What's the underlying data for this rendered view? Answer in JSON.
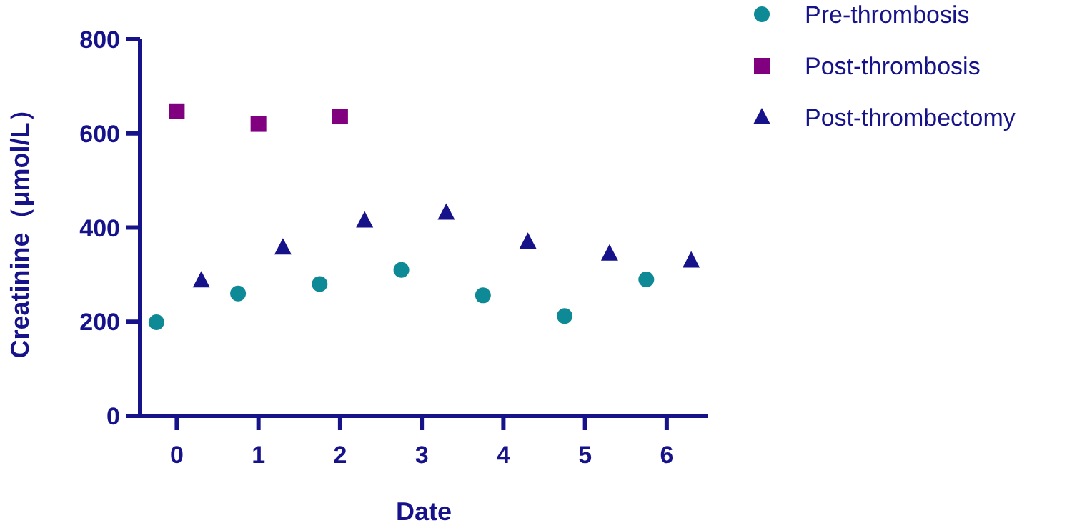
{
  "chart_data": {
    "type": "scatter",
    "xlabel": "Date",
    "ylabel": "Creatinine（μmol/L）",
    "xlim": [
      -0.45,
      6.5
    ],
    "ylim": [
      0,
      800
    ],
    "xticks": [
      0,
      1,
      2,
      3,
      4,
      5,
      6
    ],
    "yticks": [
      0,
      200,
      400,
      600,
      800
    ],
    "grid": false,
    "legend": "top right",
    "series": [
      {
        "name": "Pre-thrombosis",
        "color": "#0e8a96",
        "marker": "circle",
        "x": [
          -0.25,
          0.75,
          1.75,
          2.75,
          3.75,
          4.75,
          5.75
        ],
        "values": [
          199,
          260,
          280,
          310,
          256,
          212,
          290
        ]
      },
      {
        "name": "Post-thrombosis",
        "color": "#800080",
        "marker": "square",
        "x": [
          0,
          1,
          2
        ],
        "values": [
          647,
          620,
          636
        ]
      },
      {
        "name": "Post-thrombectomy",
        "color": "#16128a",
        "marker": "triangle",
        "x": [
          0.3,
          1.3,
          2.3,
          3.3,
          4.3,
          5.3,
          6.3
        ],
        "values": [
          288,
          358,
          415,
          432,
          370,
          345,
          330
        ]
      }
    ]
  }
}
